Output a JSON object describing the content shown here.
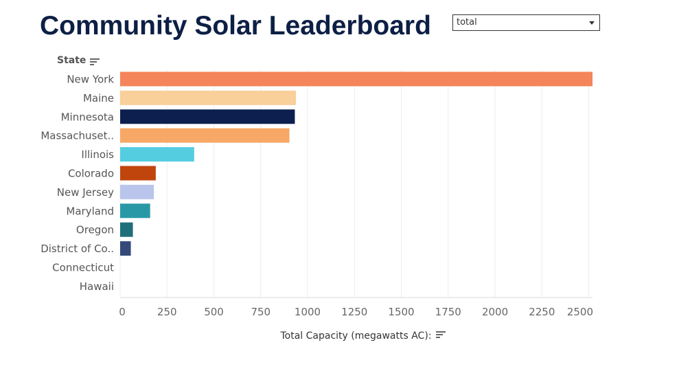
{
  "title": "Community Solar Leaderboard",
  "filter": {
    "selected": "total"
  },
  "chart_data": {
    "type": "bar",
    "orientation": "horizontal",
    "category_header": "State",
    "xlabel": "Total Capacity (megawatts AC):",
    "categories": [
      "New York",
      "Maine",
      "Minnesota",
      "Massachuset..",
      "Illinois",
      "Colorado",
      "New Jersey",
      "Maryland",
      "Oregon",
      "District of Co..",
      "Connecticut",
      "Hawaii"
    ],
    "values": [
      2520,
      938,
      932,
      903,
      395,
      190,
      180,
      160,
      68,
      57,
      0,
      0
    ],
    "colors": [
      "#f4845a",
      "#f9d09a",
      "#0c1f4e",
      "#f7a866",
      "#54cde0",
      "#c0450c",
      "#bac5ec",
      "#2998a6",
      "#1f6f7a",
      "#34497a",
      "#cccccc",
      "#cccccc"
    ],
    "xlim": [
      0,
      2520
    ],
    "xticks": [
      0,
      250,
      500,
      750,
      1000,
      1250,
      1500,
      1750,
      2000,
      2250,
      2500
    ],
    "xtick_labels": [
      "0",
      "250",
      "500",
      "750",
      "1000",
      "1250",
      "1500",
      "1750",
      "2000",
      "2250",
      "2500"
    ],
    "grid": true,
    "legend": "none"
  }
}
